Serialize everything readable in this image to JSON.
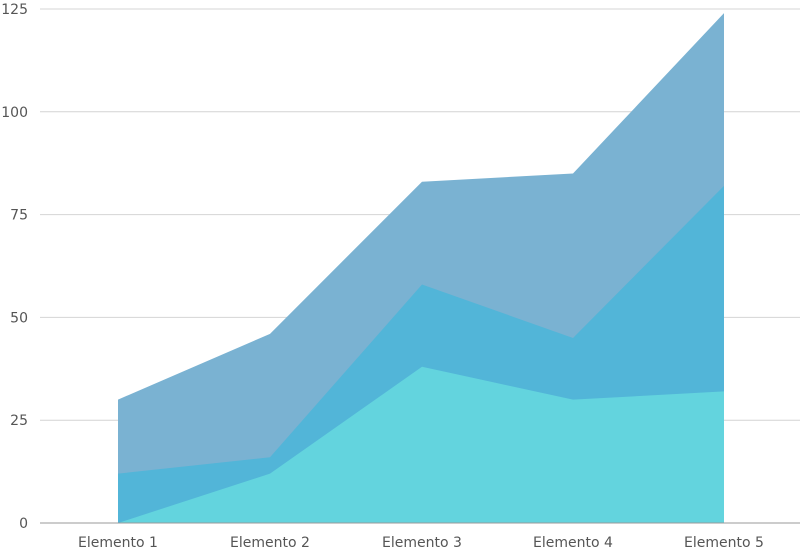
{
  "chart_data": {
    "type": "area",
    "categories": [
      "Elemento 1",
      "Elemento 2",
      "Elemento 3",
      "Elemento 4",
      "Elemento 5"
    ],
    "series": [
      {
        "values": [
          30,
          46,
          83,
          85,
          124
        ],
        "color": "#7ab2d2"
      },
      {
        "values": [
          12,
          16,
          58,
          45,
          82
        ],
        "color": "#52b5d8"
      },
      {
        "values": [
          0,
          12,
          38,
          30,
          32
        ],
        "color": "#63d4de"
      }
    ],
    "ylim": [
      0,
      125
    ],
    "yticks": [
      0,
      25,
      50,
      75,
      100,
      125
    ],
    "grid": true,
    "stacked": false,
    "title": "",
    "xlabel": "",
    "ylabel": ""
  }
}
